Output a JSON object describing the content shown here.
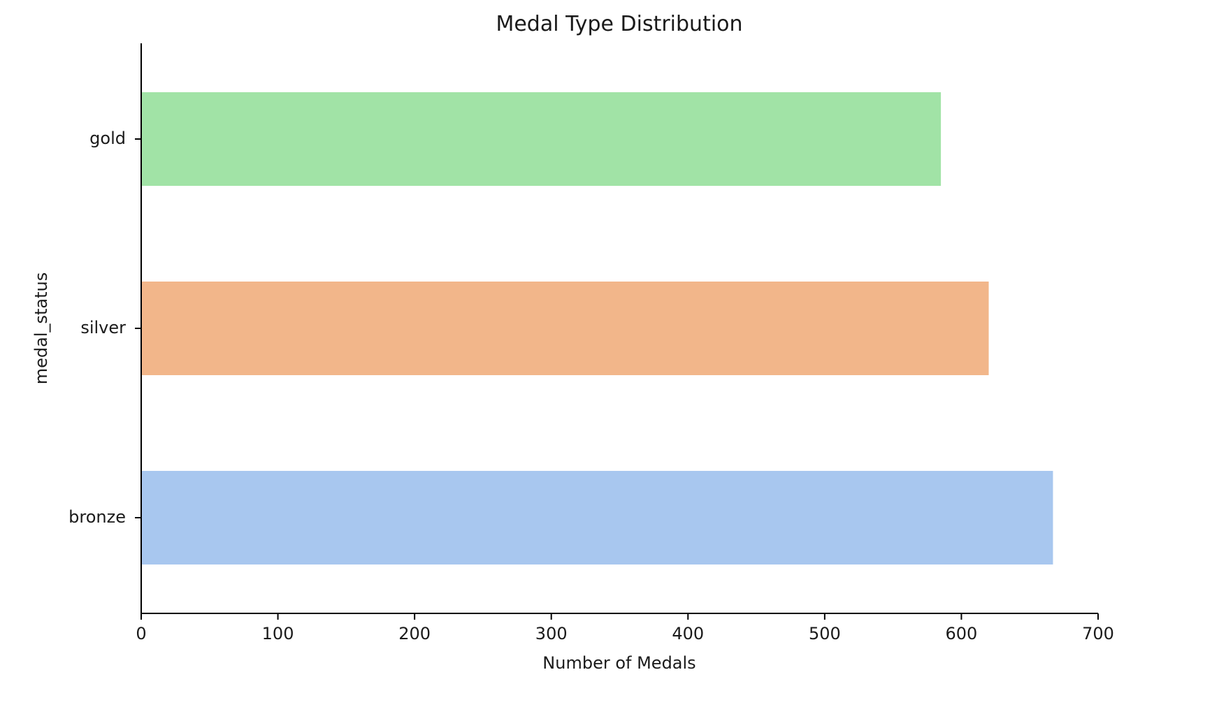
{
  "chart_data": {
    "type": "bar",
    "orientation": "horizontal",
    "title": "Medal Type Distribution",
    "xlabel": "Number of Medals",
    "ylabel": "medal_status",
    "categories": [
      "gold",
      "silver",
      "bronze"
    ],
    "values": [
      585,
      620,
      667
    ],
    "colors": [
      "#a1e3a6",
      "#f2b68a",
      "#a8c7ef"
    ],
    "xlim": [
      0,
      700
    ],
    "xticks": [
      0,
      100,
      200,
      300,
      400,
      500,
      600,
      700
    ],
    "xtick_labels": [
      "0",
      "100",
      "200",
      "300",
      "400",
      "500",
      "600",
      "700"
    ],
    "grid": false,
    "spines": [
      "left",
      "bottom"
    ]
  }
}
